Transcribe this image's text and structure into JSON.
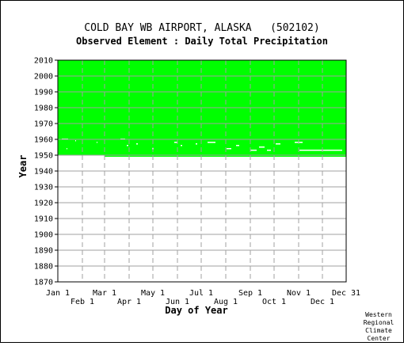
{
  "chart_data": {
    "type": "heatmap",
    "title": "COLD BAY WB AIRPORT, ALASKA   (502102)",
    "subtitle": "Observed Element : Daily Total Precipitation",
    "xlabel": "Day of Year",
    "ylabel": "Year",
    "ylim": [
      1870,
      2010
    ],
    "xlim": [
      1,
      365
    ],
    "y_ticks": [
      1870,
      1880,
      1890,
      1900,
      1910,
      1920,
      1930,
      1940,
      1950,
      1960,
      1970,
      1980,
      1990,
      2000,
      2010
    ],
    "x_ticks_upper": [
      {
        "label": "Jan 1",
        "day": 1
      },
      {
        "label": "Mar 1",
        "day": 60
      },
      {
        "label": "May 1",
        "day": 121
      },
      {
        "label": "Jul 1",
        "day": 182
      },
      {
        "label": "Sep 1",
        "day": 244
      },
      {
        "label": "Nov 1",
        "day": 305
      },
      {
        "label": "Dec 31",
        "day": 365
      }
    ],
    "x_ticks_lower": [
      {
        "label": "Feb 1",
        "day": 32
      },
      {
        "label": "Apr 1",
        "day": 91
      },
      {
        "label": "Jun 1",
        "day": 152
      },
      {
        "label": "Aug 1",
        "day": 213
      },
      {
        "label": "Oct 1",
        "day": 274
      },
      {
        "label": "Dec 1",
        "day": 335
      }
    ],
    "grid": true,
    "data_color": "#00ff00",
    "coverage": [
      {
        "year_start": 1950,
        "year_end": 2010,
        "day_start": 1,
        "day_end": 365,
        "status": "observed"
      },
      {
        "year_start": 1949,
        "year_end": 1950,
        "day_start": 60,
        "day_end": 365,
        "status": "observed"
      }
    ],
    "gaps": [
      {
        "year": 1960,
        "day_start": 6,
        "day_end": 14
      },
      {
        "year": 1960,
        "day_start": 80,
        "day_end": 86
      },
      {
        "year": 1959,
        "day_start": 23,
        "day_end": 24
      },
      {
        "year": 1958,
        "day_start": 50,
        "day_end": 51
      },
      {
        "year": 1958,
        "day_start": 148,
        "day_end": 152
      },
      {
        "year": 1958,
        "day_start": 190,
        "day_end": 200
      },
      {
        "year": 1958,
        "day_start": 300,
        "day_end": 310
      },
      {
        "year": 1957,
        "day_start": 100,
        "day_end": 102
      },
      {
        "year": 1957,
        "day_start": 175,
        "day_end": 177
      },
      {
        "year": 1957,
        "day_start": 276,
        "day_end": 282
      },
      {
        "year": 1956,
        "day_start": 88,
        "day_end": 90
      },
      {
        "year": 1956,
        "day_start": 156,
        "day_end": 158
      },
      {
        "year": 1956,
        "day_start": 226,
        "day_end": 230
      },
      {
        "year": 1955,
        "day_start": 255,
        "day_end": 262
      },
      {
        "year": 1954,
        "day_start": 12,
        "day_end": 13
      },
      {
        "year": 1954,
        "day_start": 120,
        "day_end": 122
      },
      {
        "year": 1954,
        "day_start": 214,
        "day_end": 220
      },
      {
        "year": 1953,
        "day_start": 244,
        "day_end": 252
      },
      {
        "year": 1953,
        "day_start": 265,
        "day_end": 270
      },
      {
        "year": 1953,
        "day_start": 306,
        "day_end": 360
      }
    ],
    "credit": [
      "Western",
      "Regional",
      "Climate",
      "Center"
    ]
  }
}
